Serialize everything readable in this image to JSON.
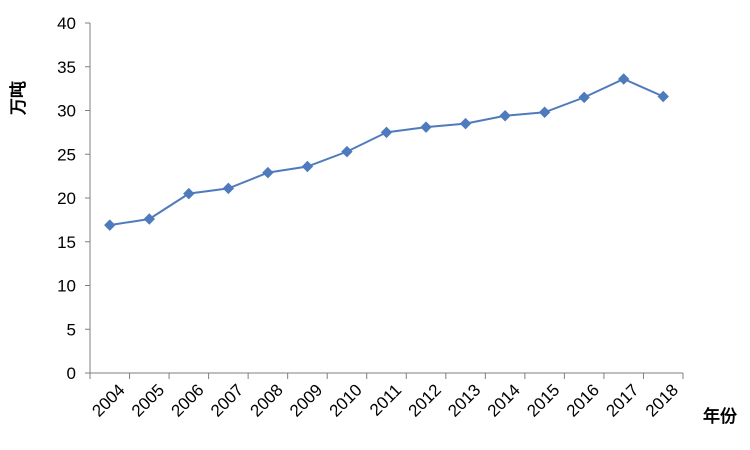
{
  "chart_data": {
    "type": "line",
    "title": "",
    "xlabel": "年份",
    "ylabel": "万吨",
    "categories": [
      "2004",
      "2005",
      "2006",
      "2007",
      "2008",
      "2009",
      "2010",
      "2011",
      "2012",
      "2013",
      "2014",
      "2015",
      "2016",
      "2017",
      "2018"
    ],
    "series": [
      {
        "values": [
          16.9,
          17.6,
          20.5,
          21.1,
          22.9,
          23.6,
          25.3,
          27.5,
          28.1,
          28.5,
          29.4,
          29.8,
          31.5,
          33.6,
          31.6
        ],
        "color": "#4F7BBD",
        "marker": "diamond"
      }
    ],
    "yticks": [
      0,
      5,
      10,
      15,
      20,
      25,
      30,
      35,
      40
    ],
    "ylim": [
      0,
      40
    ],
    "grid": false,
    "legend": "none"
  }
}
